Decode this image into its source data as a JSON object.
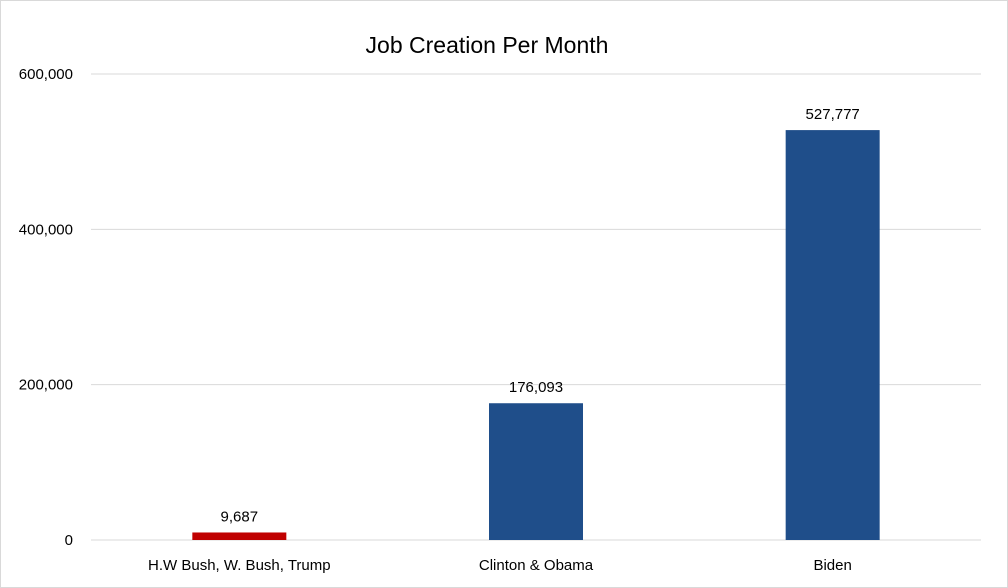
{
  "chart_data": {
    "type": "bar",
    "title": "Job Creation Per Month",
    "categories": [
      "H.W Bush, W. Bush, Trump",
      "Clinton & Obama",
      "Biden"
    ],
    "values": [
      9687,
      176093,
      527777
    ],
    "value_labels": [
      "9,687",
      "176,093",
      "527,777"
    ],
    "bar_colors": [
      "#c00000",
      "#1f4e8a",
      "#1f4e8a"
    ],
    "ylim": [
      0,
      600000
    ],
    "yticks": [
      0,
      200000,
      400000,
      600000
    ],
    "ytick_labels": [
      "0",
      "200,000",
      "400,000",
      "600,000"
    ],
    "grid": true,
    "legend": "none"
  },
  "colors": {
    "gridline": "#d9d9d9",
    "frame": "#d9d9d9"
  }
}
